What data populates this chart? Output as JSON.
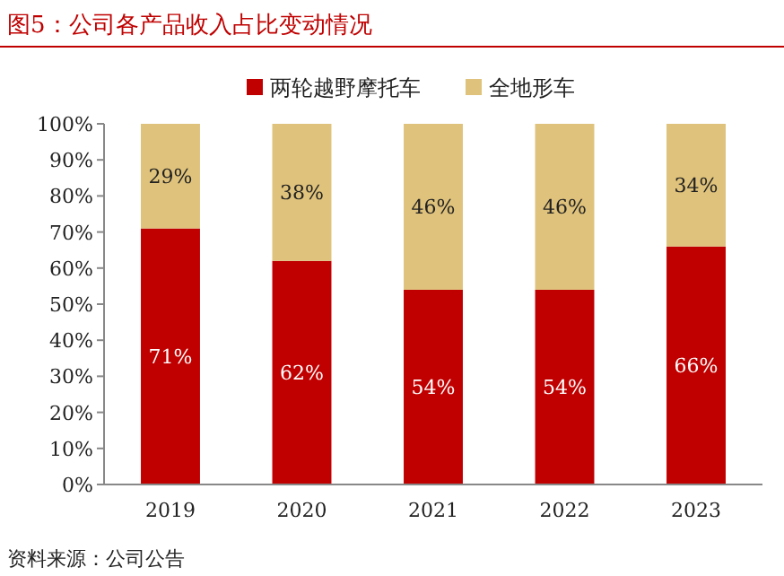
{
  "chart_data": {
    "type": "bar",
    "title": "图5：公司各产品收入占比变动情况",
    "stacked": true,
    "categories": [
      "2019",
      "2020",
      "2021",
      "2022",
      "2023"
    ],
    "series": [
      {
        "name": "两轮越野摩托车",
        "color": "#c00000",
        "values": [
          71,
          62,
          54,
          54,
          66
        ],
        "value_labels": [
          "71%",
          "62%",
          "54%",
          "54%",
          "66%"
        ]
      },
      {
        "name": "全地形车",
        "color": "#dfc27b",
        "values": [
          29,
          38,
          46,
          46,
          34
        ],
        "value_labels": [
          "29%",
          "38%",
          "46%",
          "46%",
          "34%"
        ]
      }
    ],
    "ylim": [
      0,
      100
    ],
    "yticks": [
      {
        "value": 0,
        "label": "0%"
      },
      {
        "value": 10,
        "label": "10%"
      },
      {
        "value": 20,
        "label": "20%"
      },
      {
        "value": 30,
        "label": "30%"
      },
      {
        "value": 40,
        "label": "40%"
      },
      {
        "value": 50,
        "label": "50%"
      },
      {
        "value": 60,
        "label": "60%"
      },
      {
        "value": 70,
        "label": "70%"
      },
      {
        "value": 80,
        "label": "80%"
      },
      {
        "value": 90,
        "label": "90%"
      },
      {
        "value": 100,
        "label": "100%"
      }
    ],
    "legend": "top",
    "grid": false,
    "annotations": [
      "资料来源：公司公告"
    ]
  }
}
